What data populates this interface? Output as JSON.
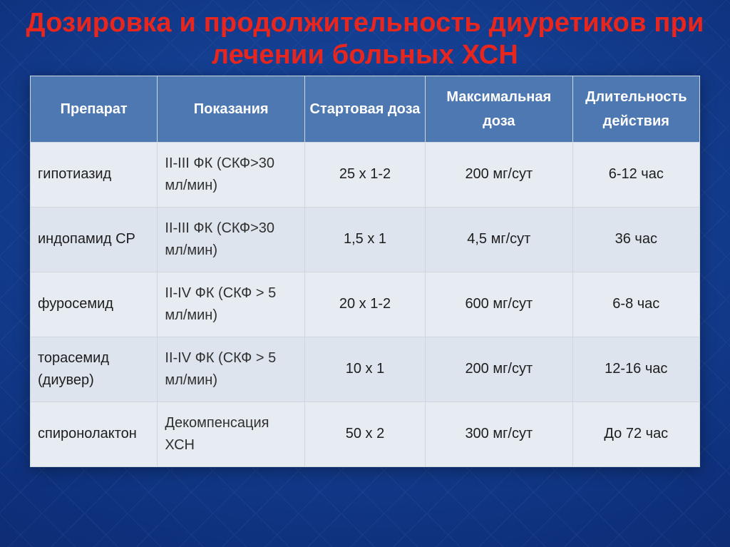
{
  "slide": {
    "title": "Дозировка и продолжительность диуретиков при лечении больных ХСН",
    "title_color": "#e9261d",
    "title_fontsize": 38,
    "background_colors": [
      "#1a4ea8",
      "#0e2f7a",
      "#081e52"
    ]
  },
  "table": {
    "type": "table",
    "header_bg": "#4d78b1",
    "header_text_color": "#ffffff",
    "body_bg_even": "#e7ecf2",
    "body_bg_odd": "#dde4ed",
    "border_color": "#cfd6e0",
    "body_text_color": "#1d1d1d",
    "header_fontsize": 20,
    "body_fontsize": 20,
    "column_widths_pct": [
      19,
      22,
      18,
      22,
      19
    ],
    "column_align": [
      "left",
      "left",
      "center",
      "center",
      "center"
    ],
    "columns": [
      "Препарат",
      "Показания",
      "Стартовая доза",
      "Максимальная доза",
      "Длительность действия"
    ],
    "rows": [
      {
        "drug": "гипотиазид",
        "indic": "II-III ФК (СКФ>30 мл/мин)",
        "start": "25 х 1-2",
        "max": "200 мг/сут",
        "dur": "6-12 час"
      },
      {
        "drug": "индопамид СР",
        "indic": "II-III ФК (СКФ>30 мл/мин)",
        "start": "1,5 х 1",
        "max": "4,5 мг/сут",
        "dur": "36 час"
      },
      {
        "drug": "фуросемид",
        "indic": "II-IV ФК (СКФ > 5 мл/мин)",
        "start": "20 х 1-2",
        "max": "600 мг/сут",
        "dur": "6-8 час"
      },
      {
        "drug": "торасемид (диувер)",
        "indic": "II-IV ФК (СКФ > 5 мл/мин)",
        "start": "10 х 1",
        "max": "200 мг/сут",
        "dur": "12-16 час"
      },
      {
        "drug": "спиронолактон",
        "indic": "Декомпенсация ХСН",
        "start": "50 х 2",
        "max": "300 мг/сут",
        "dur": "До 72 час"
      }
    ]
  }
}
